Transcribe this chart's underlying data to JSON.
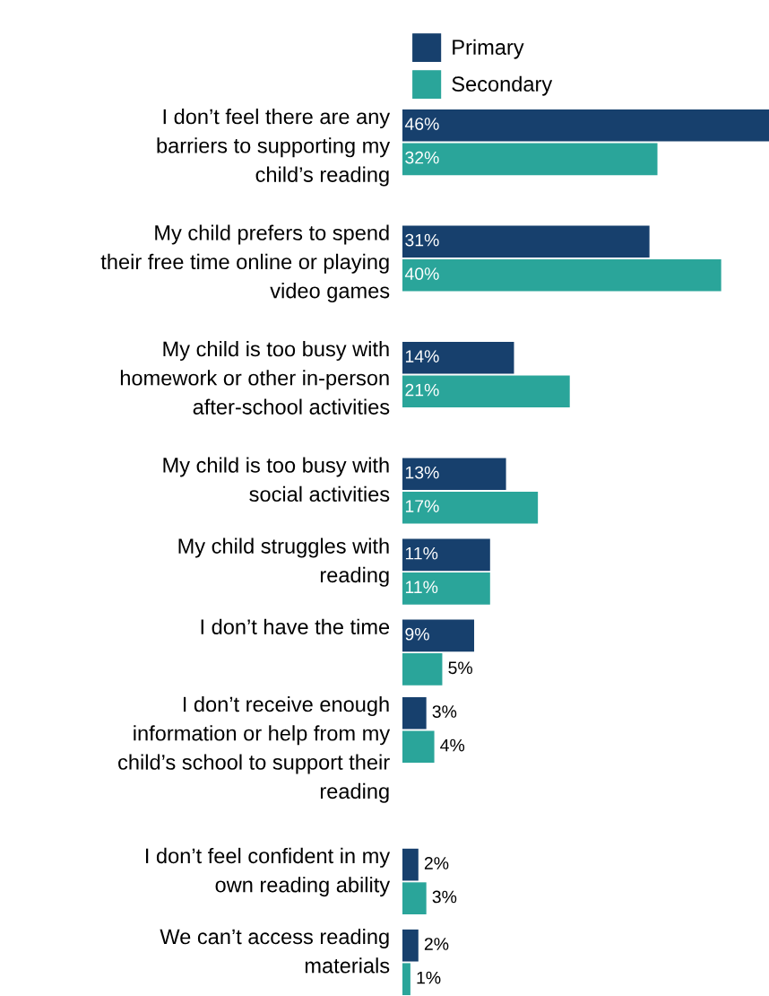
{
  "chart_data": {
    "type": "bar",
    "orientation": "horizontal",
    "categories": [
      "I don’t feel there are any\nbarriers to supporting my\nchild’s reading",
      "My child prefers to spend\ntheir free time online or playing\nvideo games",
      "My child is too busy with\nhomework or other in-person\nafter-school activities",
      "My child is too busy with\nsocial activities",
      "My child struggles with\nreading",
      "I don’t have the time",
      "I don’t receive enough\ninformation or help from my\nchild’s school to support their\nreading",
      "I don’t feel confident in my\nown reading ability",
      "We can’t access reading\nmaterials"
    ],
    "series": [
      {
        "name": "Primary",
        "color": "#17406d",
        "values": [
          46,
          31,
          14,
          13,
          11,
          9,
          3,
          2,
          2
        ],
        "value_labels": [
          "46%",
          "31%",
          "14%",
          "13%",
          "11%",
          "9%",
          "3%",
          "2%",
          "2%"
        ]
      },
      {
        "name": "Secondary",
        "color": "#2aa59a",
        "values": [
          32,
          40,
          21,
          17,
          11,
          5,
          4,
          3,
          1
        ],
        "value_labels": [
          "32%",
          "40%",
          "21%",
          "17%",
          "11%",
          "5%",
          "4%",
          "3%",
          "1%"
        ]
      }
    ],
    "legend": "top left",
    "grid": false,
    "tick_labels": "y"
  }
}
